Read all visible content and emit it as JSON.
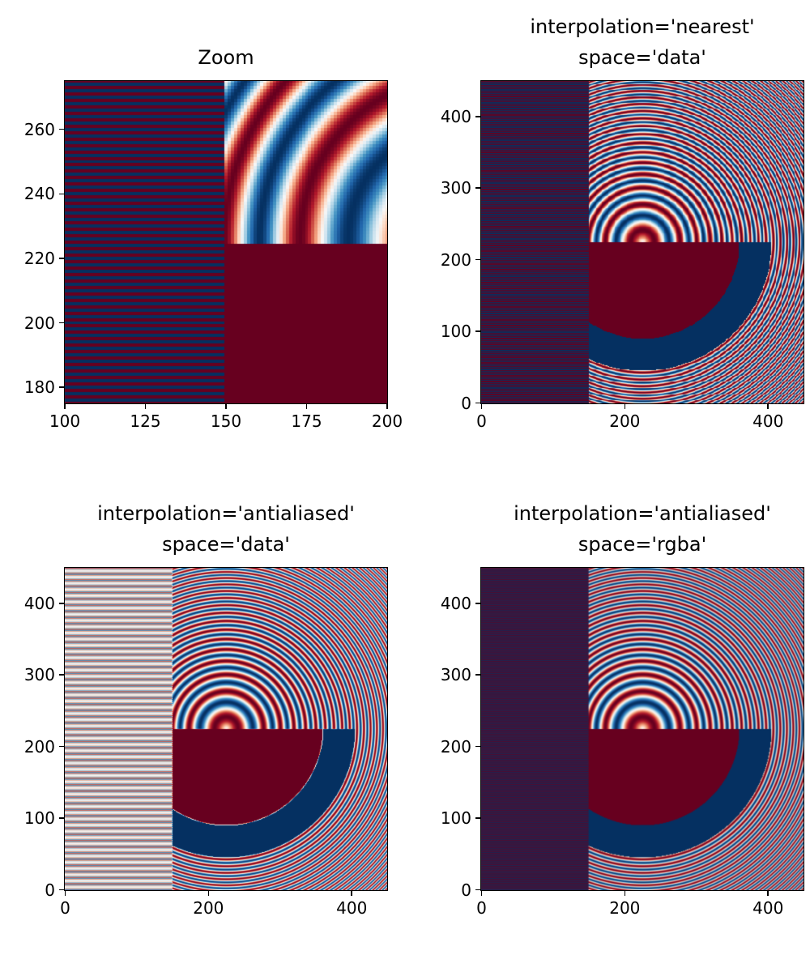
{
  "chart_data": [
    {
      "type": "heatmap",
      "title": "Zoom",
      "colormap": "RdBu_r",
      "value_range": [
        -1,
        1
      ],
      "interpolation": "nearest",
      "xlim": [
        100,
        200
      ],
      "ylim": [
        275,
        175
      ],
      "xticks": [
        "100",
        "125",
        "150",
        "175",
        "200"
      ],
      "yticks": [
        "180",
        "200",
        "220",
        "240",
        "260"
      ]
    },
    {
      "type": "heatmap",
      "title_lines": [
        "interpolation='nearest'",
        "space='data'"
      ],
      "colormap": "RdBu_r",
      "value_range": [
        -1,
        1
      ],
      "interpolation": "nearest",
      "xlim": [
        -0.5,
        449.5
      ],
      "ylim": [
        449.5,
        -0.5
      ],
      "xticks": [
        "0",
        "200",
        "400"
      ],
      "yticks": [
        "0",
        "100",
        "200",
        "300",
        "400"
      ]
    },
    {
      "type": "heatmap",
      "title_lines": [
        "interpolation='antialiased'",
        "space='data'"
      ],
      "colormap": "RdBu_r",
      "value_range": [
        -1,
        1
      ],
      "interpolation": "antialiased",
      "interpolation_stage": "data",
      "xlim": [
        -0.5,
        449.5
      ],
      "ylim": [
        449.5,
        -0.5
      ],
      "xticks": [
        "0",
        "200",
        "400"
      ],
      "yticks": [
        "0",
        "100",
        "200",
        "300",
        "400"
      ]
    },
    {
      "type": "heatmap",
      "title_lines": [
        "interpolation='antialiased'",
        "space='rgba'"
      ],
      "colormap": "RdBu_r",
      "value_range": [
        -1,
        1
      ],
      "interpolation": "antialiased",
      "interpolation_stage": "rgba",
      "xlim": [
        -0.5,
        449.5
      ],
      "ylim": [
        449.5,
        -0.5
      ],
      "xticks": [
        "0",
        "200",
        "400"
      ],
      "yticks": [
        "0",
        "100",
        "200",
        "300",
        "400"
      ]
    }
  ],
  "image": {
    "size": 450,
    "stripes_region_cols": [
      0,
      150
    ],
    "solid_region_rows": [
      0,
      225
    ],
    "inner_disk_radius": 0.3,
    "outer_ring_radius": 0.4,
    "f0": 5,
    "k": 100
  },
  "colors": {
    "colormap_stops": [
      "#053061",
      "#2166ac",
      "#4393c3",
      "#92c5de",
      "#d1e5f0",
      "#f7f7f7",
      "#fddbc7",
      "#f4a582",
      "#d6604d",
      "#b2182b",
      "#67001f"
    ]
  }
}
